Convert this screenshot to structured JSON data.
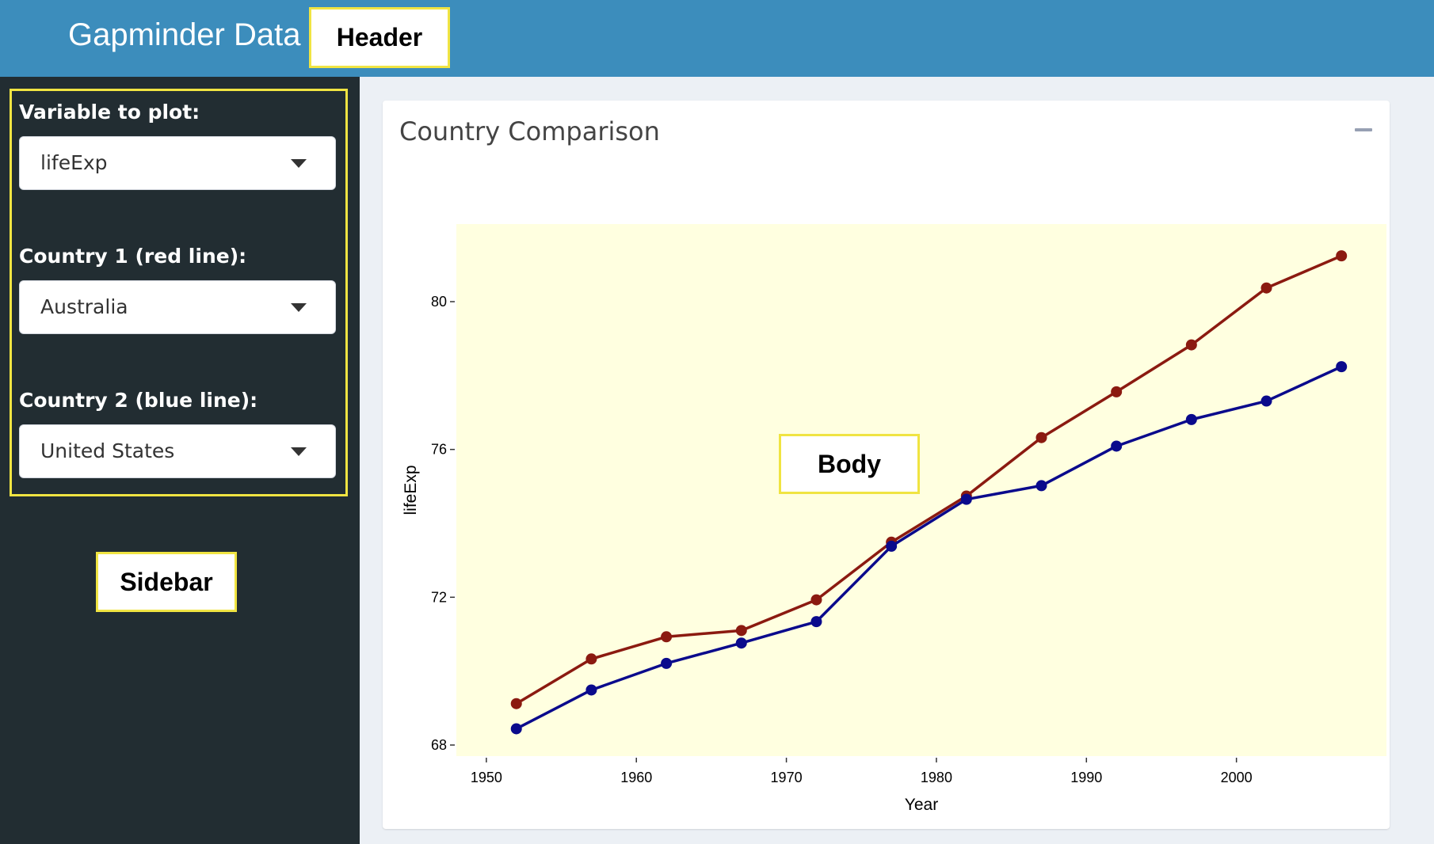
{
  "header": {
    "brand": "Gapminder Data",
    "callout": "Header",
    "color": "#3c8dbc"
  },
  "sidebar": {
    "callout": "Sidebar",
    "fields": [
      {
        "label": "Variable to plot:",
        "value": "lifeExp"
      },
      {
        "label": "Country 1 (red line):",
        "value": "Australia"
      },
      {
        "label": "Country 2 (blue line):",
        "value": "United States"
      }
    ]
  },
  "body": {
    "callout": "Body",
    "box_title": "Country Comparison",
    "collapse_icon": "minus-icon"
  },
  "chart_data": {
    "type": "line",
    "xlabel": "Year",
    "ylabel": "lifeExp",
    "xlim": [
      1948,
      2010
    ],
    "ylim": [
      67.7,
      82.1
    ],
    "xticks": [
      1950,
      1960,
      1970,
      1980,
      1990,
      2000
    ],
    "yticks": [
      68,
      72,
      76,
      80
    ],
    "background": "#ffffe0",
    "x": [
      1952,
      1957,
      1962,
      1967,
      1972,
      1977,
      1982,
      1987,
      1992,
      1997,
      2002,
      2007
    ],
    "series": [
      {
        "color": "#8b1a10",
        "values": [
          69.12,
          70.33,
          70.93,
          71.1,
          71.93,
          73.49,
          74.74,
          76.32,
          77.56,
          78.83,
          80.37,
          81.24
        ]
      },
      {
        "color": "#0a0a8c",
        "values": [
          68.44,
          69.49,
          70.21,
          70.76,
          71.34,
          73.38,
          74.65,
          75.02,
          76.09,
          76.81,
          77.31,
          78.24
        ]
      }
    ]
  }
}
